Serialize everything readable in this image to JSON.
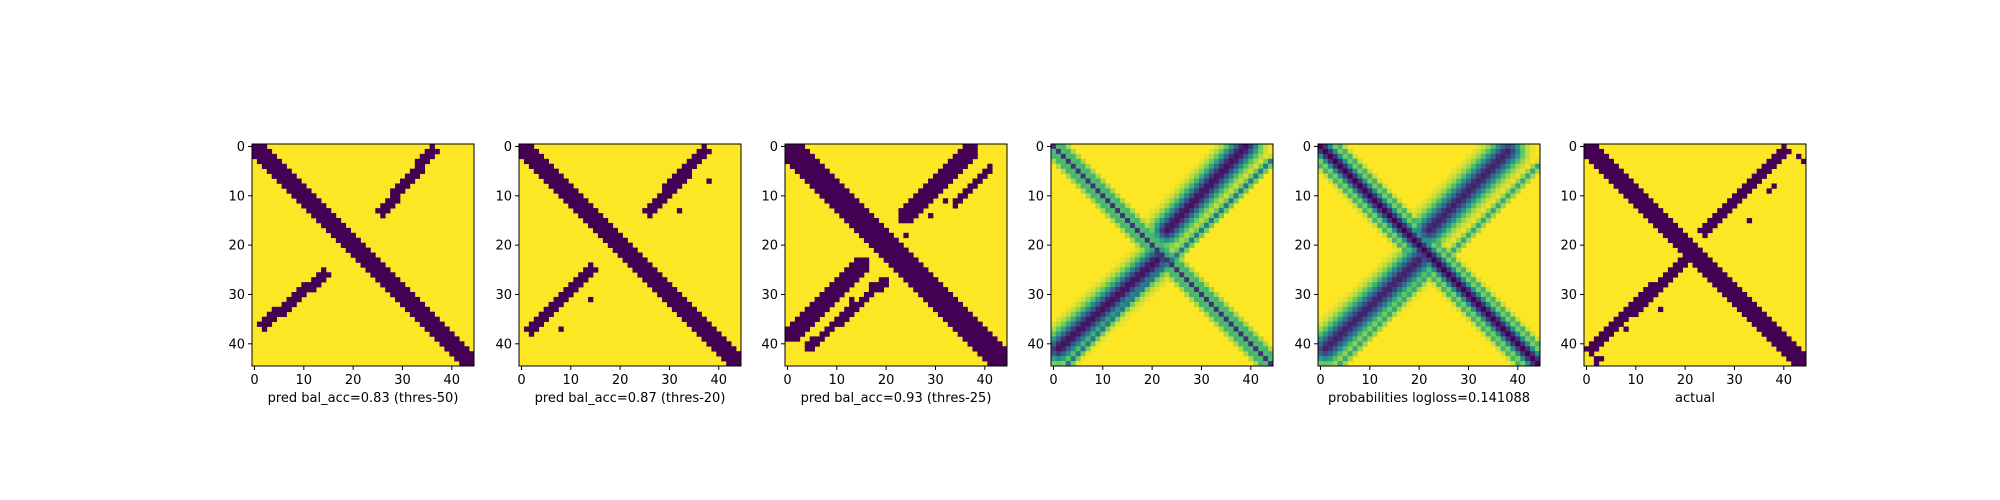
{
  "chart_data": {
    "type": "heatmap",
    "grid_size": 45,
    "colormap": "viridis",
    "ticks": [
      0,
      10,
      20,
      30,
      40
    ],
    "tick_labels": [
      "0",
      "10",
      "20",
      "30",
      "40"
    ],
    "panels": [
      {
        "xlabel": "pred bal_acc=0.83 (thres-50)",
        "kind": "binary",
        "main_diagonal": {
          "from": [
            0,
            0
          ],
          "to": [
            44,
            44
          ],
          "width": 2.6
        },
        "anti_diagonal_segments": [
          {
            "from": [
              36,
              1
            ],
            "to": [
              26,
              13
            ],
            "width": 1.4
          },
          {
            "from": [
              14,
              26
            ],
            "to": [
              2,
              36
            ],
            "width": 1.4
          }
        ],
        "isolated_cells": []
      },
      {
        "xlabel": "pred bal_acc=0.87 (thres-20)",
        "kind": "binary",
        "main_diagonal": {
          "from": [
            0,
            0
          ],
          "to": [
            44,
            44
          ],
          "width": 3.2
        },
        "anti_diagonal_segments": [
          {
            "from": [
              37,
              1
            ],
            "to": [
              26,
              13
            ],
            "width": 1.7
          },
          {
            "from": [
              14,
              25
            ],
            "to": [
              2,
              37
            ],
            "width": 1.7
          }
        ],
        "isolated_cells": [
          [
            38,
            7
          ],
          [
            32,
            13
          ],
          [
            14,
            31
          ],
          [
            8,
            37
          ]
        ]
      },
      {
        "xlabel": "pred bal_acc=0.93 (thres-25)",
        "kind": "binary",
        "main_diagonal": {
          "from": [
            0,
            0
          ],
          "to": [
            44,
            44
          ],
          "width": 4.2
        },
        "anti_diagonal_segments": [
          {
            "from": [
              37,
              1
            ],
            "to": [
              24,
              14
            ],
            "width": 2.3
          },
          {
            "from": [
              15,
              24
            ],
            "to": [
              1,
              38
            ],
            "width": 2.3
          },
          {
            "from": [
              41,
              4
            ],
            "to": [
              34,
              12
            ],
            "width": 0.8
          },
          {
            "from": [
              20,
              27
            ],
            "to": [
              4,
              41
            ],
            "width": 1.0
          }
        ],
        "isolated_cells": [
          [
            32,
            11
          ],
          [
            29,
            14
          ],
          [
            24,
            18
          ],
          [
            13,
            31
          ],
          [
            17,
            28
          ]
        ]
      },
      {
        "xlabel": "",
        "kind": "probability",
        "main_diagonal": {
          "from": [
            0,
            0
          ],
          "to": [
            44,
            44
          ],
          "width": 0.6,
          "strength": 0.85,
          "side_bands": 1
        },
        "anti_diagonal_segments": [
          {
            "from": [
              39,
              0
            ],
            "to": [
              23,
              17
            ],
            "width": 3.6,
            "strength": 0.95
          },
          {
            "from": [
              21,
              23
            ],
            "to": [
              1,
              41
            ],
            "width": 3.6,
            "strength": 0.95
          },
          {
            "from": [
              44,
              3
            ],
            "to": [
              3,
              44
            ],
            "width": 0.6,
            "strength": 0.6
          }
        ],
        "isolated_cells": []
      },
      {
        "xlabel": "probabilities logloss=0.141088",
        "kind": "probability",
        "main_diagonal": {
          "from": [
            0,
            0
          ],
          "to": [
            44,
            44
          ],
          "width": 2.4,
          "strength": 1.0,
          "side_bands": 1
        },
        "anti_diagonal_segments": [
          {
            "from": [
              38,
              1
            ],
            "to": [
              22,
              17
            ],
            "width": 3.8,
            "strength": 0.9
          },
          {
            "from": [
              20,
              23
            ],
            "to": [
              1,
              41
            ],
            "width": 3.8,
            "strength": 0.9
          },
          {
            "from": [
              44,
              4
            ],
            "to": [
              4,
              44
            ],
            "width": 0.7,
            "strength": 0.4
          }
        ],
        "isolated_cells": []
      },
      {
        "xlabel": "actual",
        "kind": "binary",
        "main_diagonal": {
          "from": [
            0,
            0
          ],
          "to": [
            44,
            44
          ],
          "width": 2.4
        },
        "anti_diagonal_segments": [
          {
            "from": [
              40,
              1
            ],
            "to": [
              24,
              17
            ],
            "width": 1.6
          },
          {
            "from": [
              22,
              21
            ],
            "to": [
              1,
              41
            ],
            "width": 1.6
          }
        ],
        "isolated_cells": [
          [
            43,
            2
          ],
          [
            44,
            3
          ],
          [
            38,
            8
          ],
          [
            37,
            9
          ],
          [
            33,
            15
          ],
          [
            15,
            33
          ],
          [
            8,
            37
          ],
          [
            2,
            43
          ],
          [
            2,
            44
          ],
          [
            3,
            43
          ]
        ]
      }
    ]
  }
}
